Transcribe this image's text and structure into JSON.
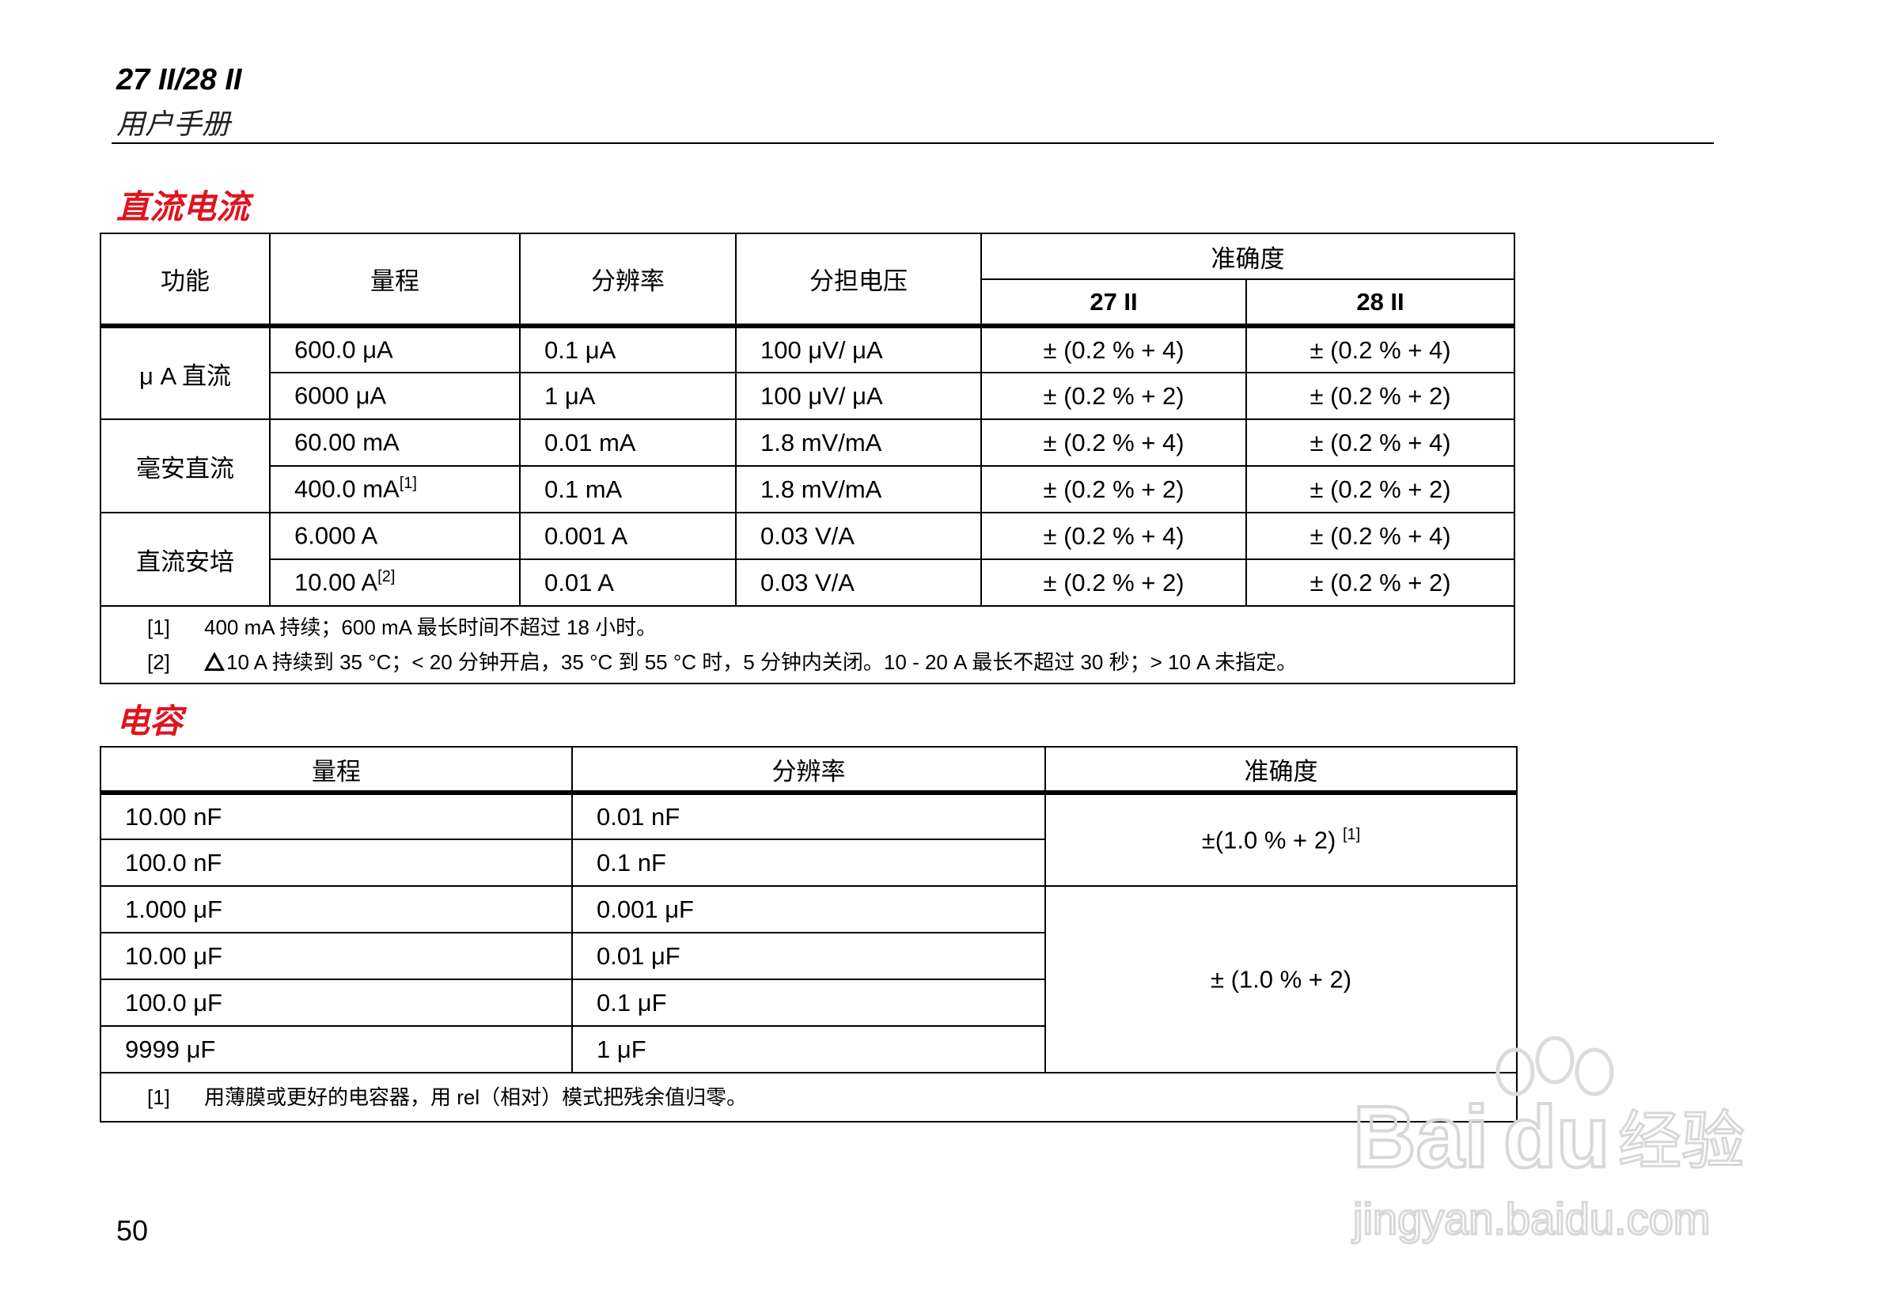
{
  "header": {
    "title": "27 II/28 II",
    "subtitle": "用户手册"
  },
  "dc_current": {
    "section_title": "直流电流",
    "headers": {
      "function": "功能",
      "range": "量程",
      "resolution": "分辨率",
      "burden_voltage": "分担电压",
      "accuracy": "准确度",
      "model_27": "27 II",
      "model_28": "28 II"
    },
    "groups": [
      {
        "function": "μ A 直流",
        "rows": [
          {
            "range": "600.0 μA",
            "sup": "",
            "resolution": "0.1 μA",
            "burden": "100 μV/ μA",
            "acc27": "± (0.2 % + 4)",
            "acc28": "± (0.2 % + 4)"
          },
          {
            "range": "6000 μA",
            "sup": "",
            "resolution": "1 μA",
            "burden": "100 μV/ μA",
            "acc27": "± (0.2 % + 2)",
            "acc28": "± (0.2 % + 2)"
          }
        ]
      },
      {
        "function": "毫安直流",
        "rows": [
          {
            "range": "60.00 mA",
            "sup": "",
            "resolution": "0.01 mA",
            "burden": "1.8 mV/mA",
            "acc27": "± (0.2 % + 4)",
            "acc28": "± (0.2 % + 4)"
          },
          {
            "range": "400.0 mA",
            "sup": "[1]",
            "resolution": "0.1 mA",
            "burden": "1.8 mV/mA",
            "acc27": "± (0.2 % + 2)",
            "acc28": "± (0.2 % + 2)"
          }
        ]
      },
      {
        "function": "直流安培",
        "rows": [
          {
            "range": "6.000 A",
            "sup": "",
            "resolution": "0.001 A",
            "burden": "0.03 V/A",
            "acc27": "± (0.2 % + 4)",
            "acc28": "± (0.2 % + 4)"
          },
          {
            "range": "10.00 A",
            "sup": "[2]",
            "resolution": "0.01 A",
            "burden": "0.03 V/A",
            "acc27": "± (0.2 % + 2)",
            "acc28": "± (0.2 % + 2)"
          }
        ]
      }
    ],
    "footnotes": [
      {
        "tag": "[1]",
        "text": "400 mA 持续；600 mA 最长时间不超过 18 小时。",
        "warning_icon": false
      },
      {
        "tag": "[2]",
        "text": "10 A 持续到 35 °C；< 20 分钟开启，35 °C 到 55 °C 时，5 分钟内关闭。10 - 20 A 最长不超过 30 秒；> 10 A 未指定。",
        "warning_icon": true
      }
    ]
  },
  "capacitance": {
    "section_title": "电容",
    "headers": {
      "range": "量程",
      "resolution": "分辨率",
      "accuracy": "准确度"
    },
    "rows": [
      {
        "range": "10.00 nF",
        "resolution": "0.01 nF"
      },
      {
        "range": "100.0 nF",
        "resolution": "0.1 nF"
      },
      {
        "range": "1.000 μF",
        "resolution": "0.001 μF"
      },
      {
        "range": "10.00 μF",
        "resolution": "0.01 μF"
      },
      {
        "range": "100.0 μF",
        "resolution": "0.1 μF"
      },
      {
        "range": "9999 μF",
        "resolution": "1 μF"
      }
    ],
    "accuracy_groups": [
      {
        "value": "±(1.0 % + 2)",
        "sup": "[1]"
      },
      {
        "value": "± (1.0 % + 2)",
        "sup": ""
      }
    ],
    "footnotes": [
      {
        "tag": "[1]",
        "text": "用薄膜或更好的电容器，用 rel（相对）模式把残余值归零。"
      }
    ]
  },
  "page_number": "50",
  "watermark": {
    "text": "Baidu经验",
    "url_text": "jingyan.baidu.com"
  },
  "colors": {
    "section_title": "#e0141e",
    "watermark": "#e4e4e4"
  }
}
